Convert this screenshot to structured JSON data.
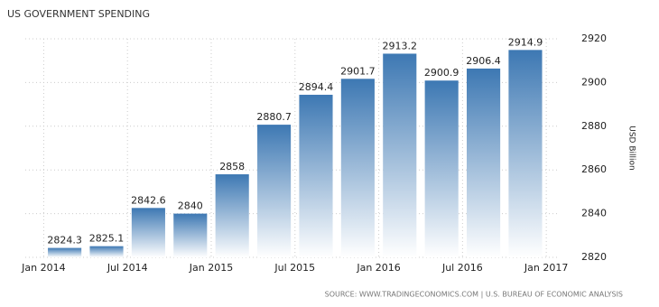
{
  "chart_data": {
    "type": "bar",
    "title": "US GOVERNMENT SPENDING",
    "y_label": "USD Billion",
    "source": "SOURCE: WWW.TRADINGECONOMICS.COM | U.S. BUREAU OF ECONOMIC ANALYSIS",
    "x": [
      2014.125,
      2014.375,
      2014.625,
      2014.875,
      2015.125,
      2015.375,
      2015.625,
      2015.875,
      2016.125,
      2016.375,
      2016.625,
      2016.875
    ],
    "values": [
      2824.3,
      2825.1,
      2842.6,
      2840,
      2858,
      2880.7,
      2894.4,
      2901.7,
      2913.2,
      2900.9,
      2906.4,
      2914.9
    ],
    "color": "#3d78b3",
    "xlim": [
      2013.89,
      2017.08
    ],
    "xticks": [
      {
        "value": 2014,
        "label": "Jan 2014"
      },
      {
        "value": 2014.5,
        "label": "Jul 2014"
      },
      {
        "value": 2015,
        "label": "Jan 2015"
      },
      {
        "value": 2015.5,
        "label": "Jul 2015"
      },
      {
        "value": 2016,
        "label": "Jan 2016"
      },
      {
        "value": 2016.5,
        "label": "Jul 2016"
      },
      {
        "value": 2017,
        "label": "Jan 2017"
      }
    ],
    "ylim": [
      2820,
      2920
    ],
    "yticks": [
      2820,
      2840,
      2860,
      2880,
      2900,
      2920
    ],
    "grid": true
  }
}
